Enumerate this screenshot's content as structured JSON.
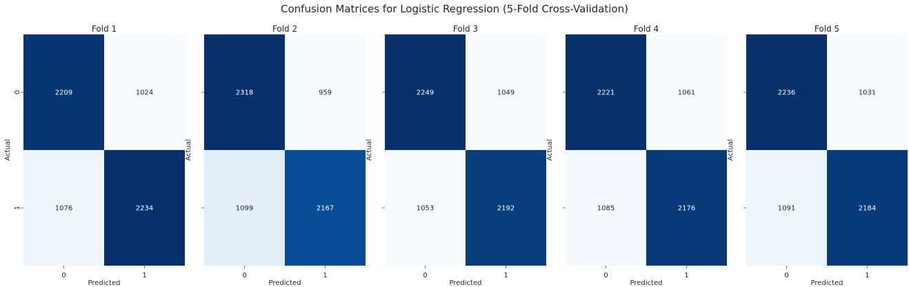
{
  "title": "Confusion Matrices for Logistic Regression (5-Fold Cross-Validation)",
  "chart_data": [
    {
      "type": "heatmap",
      "title": "Fold 1",
      "xlabel": "Predicted",
      "ylabel": "Actual",
      "x_ticks": [
        "0",
        "1"
      ],
      "y_ticks": [
        "0",
        "1"
      ],
      "matrix": [
        [
          2209,
          1024
        ],
        [
          1076,
          2234
        ]
      ],
      "colormap": "Blues",
      "colorbar": false
    },
    {
      "type": "heatmap",
      "title": "Fold 2",
      "xlabel": "Predicted",
      "ylabel": "Actual",
      "x_ticks": [
        "0",
        "1"
      ],
      "y_ticks": [
        "0",
        "1"
      ],
      "matrix": [
        [
          2318,
          959
        ],
        [
          1099,
          2167
        ]
      ],
      "colormap": "Blues",
      "colorbar": false
    },
    {
      "type": "heatmap",
      "title": "Fold 3",
      "xlabel": "Predicted",
      "ylabel": "Actual",
      "x_ticks": [
        "0",
        "1"
      ],
      "y_ticks": [
        "0",
        "1"
      ],
      "matrix": [
        [
          2249,
          1049
        ],
        [
          1053,
          2192
        ]
      ],
      "colormap": "Blues",
      "colorbar": false
    },
    {
      "type": "heatmap",
      "title": "Fold 4",
      "xlabel": "Predicted",
      "ylabel": "Actual",
      "x_ticks": [
        "0",
        "1"
      ],
      "y_ticks": [
        "0",
        "1"
      ],
      "matrix": [
        [
          2221,
          1061
        ],
        [
          1085,
          2176
        ]
      ],
      "colormap": "Blues",
      "colorbar": false
    },
    {
      "type": "heatmap",
      "title": "Fold 5",
      "xlabel": "Predicted",
      "ylabel": "Actual",
      "x_ticks": [
        "0",
        "1"
      ],
      "y_ticks": [
        "0",
        "1"
      ],
      "matrix": [
        [
          2236,
          1031
        ],
        [
          1091,
          2184
        ]
      ],
      "colormap": "Blues",
      "colorbar": false
    }
  ]
}
